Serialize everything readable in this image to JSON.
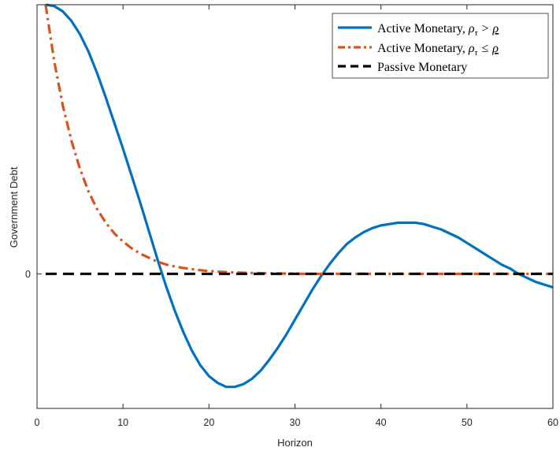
{
  "chart_data": {
    "type": "line",
    "xlabel": "Horizon",
    "ylabel": "Government Debt",
    "xlim": [
      0,
      60
    ],
    "ylim": [
      -1.0,
      2.0
    ],
    "xticks": [
      "0",
      "10",
      "20",
      "30",
      "40",
      "50",
      "60"
    ],
    "yticks": [
      "0"
    ],
    "grid": false,
    "legend_position": "top-right",
    "series": [
      {
        "name": "Active Monetary, ρτ > ρ",
        "legend_main": "Active Monetary, ",
        "legend_math": "ρ",
        "legend_sub": "τ",
        "legend_op": ">",
        "legend_rho": "ρ",
        "color": "#0072BD",
        "dash": "solid",
        "x": [
          1,
          2,
          3,
          4,
          5,
          6,
          7,
          8,
          9,
          10,
          11,
          12,
          13,
          14,
          15,
          16,
          17,
          18,
          19,
          20,
          21,
          22,
          23,
          24,
          25,
          26,
          27,
          28,
          29,
          30,
          31,
          32,
          33,
          34,
          35,
          36,
          37,
          38,
          39,
          40,
          41,
          42,
          43,
          44,
          45,
          46,
          47,
          48,
          49,
          50,
          51,
          52,
          53,
          54,
          55,
          56,
          57,
          58,
          59,
          60
        ],
        "y": [
          2.0,
          1.99,
          1.95,
          1.88,
          1.78,
          1.65,
          1.49,
          1.31,
          1.12,
          0.93,
          0.73,
          0.53,
          0.32,
          0.11,
          -0.09,
          -0.27,
          -0.43,
          -0.57,
          -0.68,
          -0.76,
          -0.81,
          -0.84,
          -0.84,
          -0.82,
          -0.78,
          -0.72,
          -0.64,
          -0.55,
          -0.45,
          -0.34,
          -0.23,
          -0.12,
          -0.02,
          0.07,
          0.15,
          0.22,
          0.27,
          0.31,
          0.34,
          0.36,
          0.37,
          0.38,
          0.38,
          0.38,
          0.37,
          0.35,
          0.33,
          0.3,
          0.27,
          0.23,
          0.19,
          0.15,
          0.11,
          0.07,
          0.04,
          0.0,
          -0.03,
          -0.06,
          -0.08,
          -0.1
        ]
      },
      {
        "name": "Active Monetary, ρτ ≤ ρ",
        "legend_main": "Active Monetary, ",
        "legend_math": "ρ",
        "legend_sub": "τ",
        "legend_op": "≤",
        "legend_rho": "ρ",
        "color": "#D95319",
        "dash": "dashdot",
        "x": [
          1,
          2,
          3,
          4,
          5,
          6,
          7,
          8,
          9,
          10,
          11,
          12,
          13,
          14,
          15,
          16,
          17,
          18,
          19,
          20,
          21,
          22,
          23,
          24,
          25,
          26,
          27,
          28,
          29,
          30,
          31,
          32,
          33,
          34,
          35,
          36,
          37,
          38,
          39,
          40,
          41,
          42,
          43,
          44,
          45,
          46,
          47,
          48,
          49,
          50,
          51,
          52,
          53,
          54,
          55,
          56,
          57,
          58,
          59,
          60
        ],
        "y": [
          2.0,
          1.58,
          1.25,
          0.99,
          0.78,
          0.61,
          0.48,
          0.38,
          0.3,
          0.24,
          0.19,
          0.15,
          0.12,
          0.09,
          0.07,
          0.055,
          0.044,
          0.035,
          0.027,
          0.021,
          0.017,
          0.013,
          0.01,
          0.008,
          0.006,
          0.005,
          0.004,
          0.003,
          0.002,
          0.002,
          0.0,
          0.0,
          0.0,
          0.0,
          0.0,
          0.0,
          0.0,
          0.0,
          0.0,
          0.0,
          0.0,
          0.0,
          0.0,
          0.0,
          0.0,
          0.0,
          0.0,
          0.0,
          0.0,
          0.0,
          0.0,
          0.0,
          0.0,
          0.0,
          0.0,
          0.0,
          0.0,
          0.0,
          0.0,
          0.0
        ]
      },
      {
        "name": "Passive Monetary",
        "legend_main": "Passive Monetary",
        "color": "#000000",
        "dash": "dashed",
        "x": [
          1,
          60
        ],
        "y": [
          0,
          0
        ]
      }
    ]
  }
}
